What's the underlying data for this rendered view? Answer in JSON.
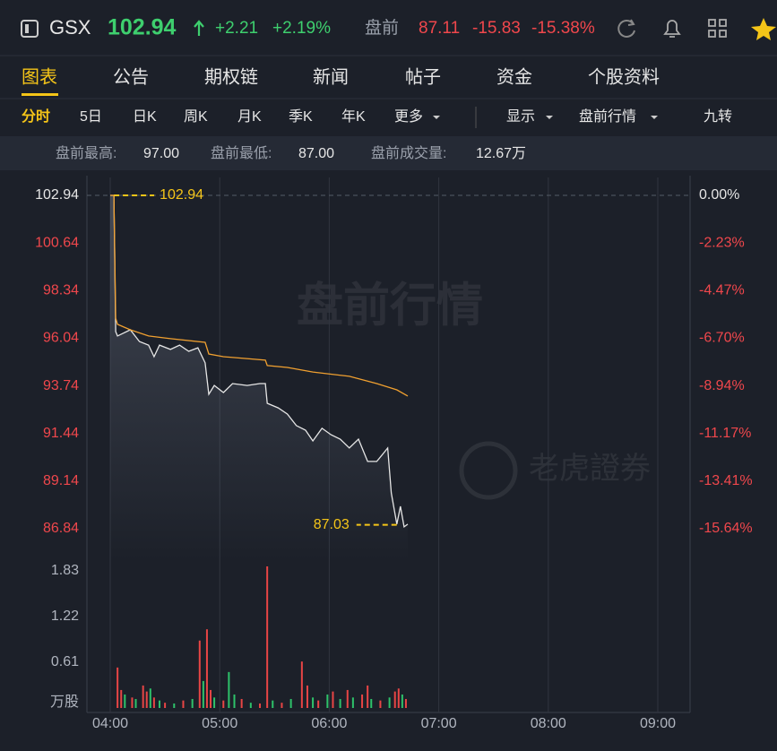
{
  "header": {
    "ticker": "GSX",
    "price": "102.94",
    "change": "+2.21",
    "change_pct": "+2.19%",
    "premarket_label": "盘前",
    "premarket_price": "87.11",
    "premarket_change": "-15.83",
    "premarket_change_pct": "-15.38%"
  },
  "tabs": [
    "图表",
    "公告",
    "期权链",
    "新闻",
    "帖子",
    "资金",
    "个股资料"
  ],
  "periods": [
    "分时",
    "5日",
    "日K",
    "周K",
    "月K",
    "季K",
    "年K",
    "更多"
  ],
  "toolbar": [
    "显示",
    "盘前行情",
    "九转"
  ],
  "stats": [
    {
      "label": "盘前最高:",
      "value": "97.00"
    },
    {
      "label": "盘前最低:",
      "value": "87.00"
    },
    {
      "label": "盘前成交量:",
      "value": "12.67万"
    }
  ],
  "watermark": [
    "盘前行情",
    "老虎證券"
  ],
  "chart_data": [
    {
      "type": "line",
      "xlim": [
        "04:00",
        "09:00"
      ],
      "ylim": [
        86.84,
        102.94
      ],
      "yticks": [
        102.94,
        100.64,
        98.34,
        96.04,
        93.74,
        91.44,
        89.14,
        86.84
      ],
      "y2lim": [
        -15.64,
        0
      ],
      "y2ticks": [
        {
          "value": 0,
          "label": "0.00%"
        },
        {
          "value": -2.23,
          "label": "-2.23%"
        },
        {
          "value": -4.47,
          "label": "-4.47%"
        },
        {
          "value": -6.7,
          "label": "-6.70%"
        },
        {
          "value": -8.94,
          "label": "-8.94%"
        },
        {
          "value": -11.17,
          "label": "-11.17%"
        },
        {
          "value": -13.41,
          "label": "-13.41%"
        },
        {
          "value": -15.64,
          "label": "-15.64%"
        }
      ],
      "series": [
        {
          "color": "#e6e6e6",
          "fill": true,
          "x": [
            "04:00",
            "04:02",
            "04:03",
            "04:04",
            "04:11",
            "04:16",
            "04:21",
            "04:24",
            "04:27",
            "04:33",
            "04:38",
            "04:43",
            "04:48",
            "04:52",
            "04:54",
            "04:57",
            "05:02",
            "05:07",
            "05:15",
            "05:22",
            "05:25",
            "05:26",
            "05:32",
            "05:37",
            "05:42",
            "05:47",
            "05:51",
            "05:56",
            "06:01",
            "06:06",
            "06:11",
            "06:16",
            "06:21",
            "06:26",
            "06:30",
            "06:32",
            "06:34",
            "06:37",
            "06:39",
            "06:41",
            "06:43"
          ],
          "values": [
            102.94,
            102.94,
            96.36,
            96.15,
            96.45,
            95.88,
            95.71,
            95.15,
            95.71,
            95.5,
            95.71,
            95.41,
            95.58,
            94.85,
            93.33,
            93.76,
            93.42,
            93.85,
            93.76,
            93.85,
            93.85,
            92.9,
            92.68,
            92.38,
            91.82,
            91.6,
            91.08,
            91.69,
            91.38,
            91.17,
            90.74,
            91.17,
            90.09,
            90.09,
            90.52,
            90.74,
            88.57,
            87.06,
            87.92,
            86.93,
            87.06
          ]
        },
        {
          "color": "#f0a030",
          "fill": false,
          "x": [
            "04:00",
            "04:02",
            "04:03",
            "04:04",
            "04:11",
            "04:21",
            "04:33",
            "04:52",
            "04:54",
            "05:02",
            "05:25",
            "05:26",
            "05:37",
            "05:51",
            "06:11",
            "06:26",
            "06:37",
            "06:43"
          ],
          "values": [
            102.94,
            102.94,
            97.01,
            96.71,
            96.45,
            96.15,
            96.02,
            95.84,
            95.28,
            95.15,
            94.98,
            94.72,
            94.63,
            94.41,
            94.2,
            93.85,
            93.55,
            93.25
          ]
        }
      ],
      "annotations": [
        {
          "label": "102.94",
          "value": 102.94,
          "x": "04:02",
          "side": "right",
          "color": "#f5c518"
        },
        {
          "label": "87.03",
          "value": 87.03,
          "x": "06:37",
          "side": "left",
          "color": "#f5c518"
        }
      ]
    },
    {
      "type": "bar",
      "ylabel": "万股",
      "xlim": [
        "04:00",
        "09:00"
      ],
      "ylim": [
        0,
        1.83
      ],
      "yticks": [
        0.61,
        1.22,
        1.83
      ],
      "xticks": [
        "04:00",
        "05:00",
        "06:00",
        "07:00",
        "08:00",
        "09:00"
      ],
      "x": [
        "04:04",
        "04:06",
        "04:08",
        "04:12",
        "04:14",
        "04:18",
        "04:20",
        "04:22",
        "04:24",
        "04:27",
        "04:30",
        "04:35",
        "04:40",
        "04:45",
        "04:49",
        "04:51",
        "04:53",
        "04:55",
        "04:57",
        "05:02",
        "05:05",
        "05:08",
        "05:12",
        "05:17",
        "05:22",
        "05:26",
        "05:29",
        "05:34",
        "05:39",
        "05:45",
        "05:48",
        "05:51",
        "05:54",
        "05:59",
        "06:02",
        "06:06",
        "06:10",
        "06:13",
        "06:18",
        "06:21",
        "06:23",
        "06:28",
        "06:33",
        "06:36",
        "06:38",
        "06:40",
        "06:42"
      ],
      "values": [
        0.54,
        0.24,
        0.18,
        0.14,
        0.12,
        0.3,
        0.22,
        0.26,
        0.14,
        0.1,
        0.07,
        0.06,
        0.1,
        0.12,
        0.9,
        0.36,
        1.05,
        0.24,
        0.14,
        0.1,
        0.48,
        0.18,
        0.12,
        0.07,
        0.06,
        1.89,
        0.1,
        0.07,
        0.12,
        0.62,
        0.3,
        0.14,
        0.1,
        0.18,
        0.22,
        0.12,
        0.24,
        0.14,
        0.18,
        0.3,
        0.12,
        0.1,
        0.14,
        0.22,
        0.26,
        0.18,
        0.12
      ],
      "colors": [
        "#e84545",
        "#e84545",
        "#2ec26a",
        "#e84545",
        "#2ec26a",
        "#e84545",
        "#e84545",
        "#2ec26a",
        "#e84545",
        "#2ec26a",
        "#e84545",
        "#2ec26a",
        "#e84545",
        "#2ec26a",
        "#e84545",
        "#2ec26a",
        "#e84545",
        "#e84545",
        "#2ec26a",
        "#e84545",
        "#2ec26a",
        "#2ec26a",
        "#e84545",
        "#2ec26a",
        "#e84545",
        "#e84545",
        "#2ec26a",
        "#e84545",
        "#2ec26a",
        "#e84545",
        "#e84545",
        "#2ec26a",
        "#e84545",
        "#2ec26a",
        "#e84545",
        "#2ec26a",
        "#e84545",
        "#2ec26a",
        "#e84545",
        "#e84545",
        "#2ec26a",
        "#e84545",
        "#2ec26a",
        "#e84545",
        "#e84545",
        "#2ec26a",
        "#e84545"
      ]
    }
  ]
}
